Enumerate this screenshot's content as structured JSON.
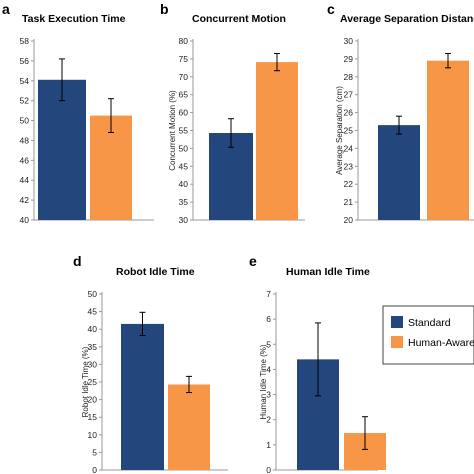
{
  "chart_data": [
    {
      "panel": "a",
      "type": "bar",
      "title": "Task Execution Time",
      "ylabel": "",
      "ylim": [
        40,
        58
      ],
      "yticks": [
        40,
        42,
        44,
        46,
        48,
        50,
        52,
        54,
        56,
        58
      ],
      "series": [
        {
          "name": "Standard",
          "value": 54.1,
          "error": 2.1
        },
        {
          "name": "Human-Aware",
          "value": 50.5,
          "error": 1.7
        }
      ]
    },
    {
      "panel": "b",
      "type": "bar",
      "title": "Concurrent Motion",
      "ylabel": "Concurrent Motion (%)",
      "ylim": [
        30,
        80
      ],
      "yticks": [
        30,
        35,
        40,
        45,
        50,
        55,
        60,
        65,
        70,
        75,
        80
      ],
      "series": [
        {
          "name": "Standard",
          "value": 54.3,
          "error": 4.0
        },
        {
          "name": "Human-Aware",
          "value": 74.1,
          "error": 2.4
        }
      ]
    },
    {
      "panel": "c",
      "type": "bar",
      "title": "Average Separation Distance",
      "ylabel": "Average Separation (cm)",
      "ylim": [
        20,
        30
      ],
      "yticks": [
        20,
        21,
        22,
        23,
        24,
        25,
        26,
        27,
        28,
        29,
        30
      ],
      "series": [
        {
          "name": "Standard",
          "value": 25.3,
          "error": 0.5
        },
        {
          "name": "Human-Aware",
          "value": 28.9,
          "error": 0.4
        }
      ]
    },
    {
      "panel": "d",
      "type": "bar",
      "title": "Robot Idle Time",
      "ylabel": "Robot Idle Time (%)",
      "ylim": [
        0,
        50
      ],
      "yticks": [
        0,
        5,
        10,
        15,
        20,
        25,
        30,
        35,
        40,
        45,
        50
      ],
      "series": [
        {
          "name": "Standard",
          "value": 41.5,
          "error": 3.3
        },
        {
          "name": "Human-Aware",
          "value": 24.3,
          "error": 2.3
        }
      ]
    },
    {
      "panel": "e",
      "type": "bar",
      "title": "Human Idle Time",
      "ylabel": "Human Idle Time (%)",
      "ylim": [
        0,
        7
      ],
      "yticks": [
        0,
        1,
        2,
        3,
        4,
        5,
        6,
        7
      ],
      "series": [
        {
          "name": "Standard",
          "value": 4.4,
          "error": 1.45
        },
        {
          "name": "Human-Aware",
          "value": 1.47,
          "error": 0.65
        }
      ]
    }
  ],
  "legend": {
    "placement": "right",
    "items": [
      {
        "label": "Standard",
        "color": "#23467d"
      },
      {
        "label": "Human-Aware",
        "color": "#f79646"
      }
    ]
  },
  "colors": {
    "standard": "#23467d",
    "human_aware": "#f79646",
    "axis": "#999999"
  }
}
